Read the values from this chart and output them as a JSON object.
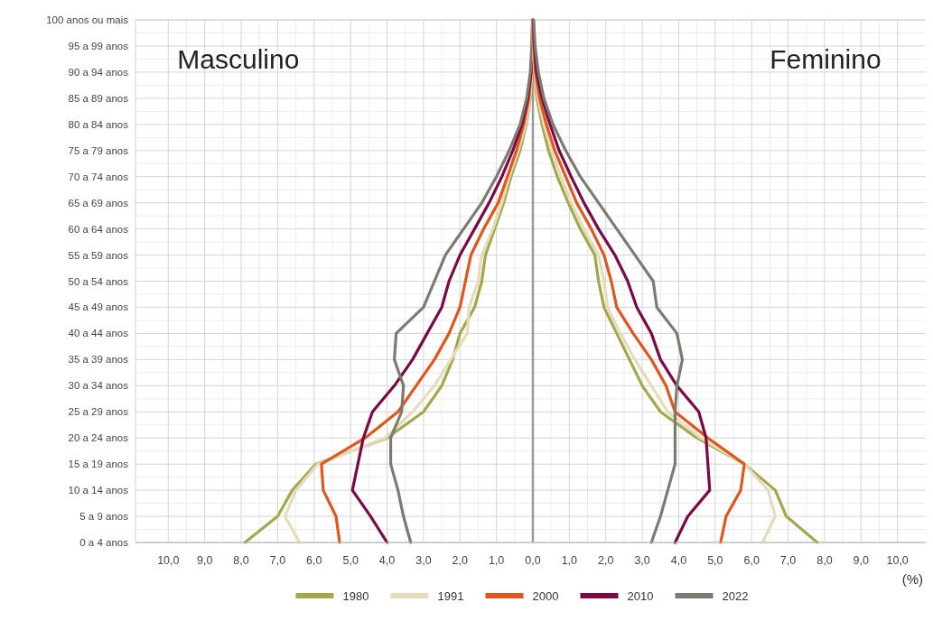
{
  "chart_data": {
    "type": "line",
    "orientation": "horizontal",
    "xlabel": "(%)",
    "annotations": [
      "Masculino",
      "Feminino"
    ],
    "categories": [
      "100 anos ou mais",
      "95 a 99 anos",
      "90 a 94 anos",
      "85 a 89 anos",
      "80 a 84 anos",
      "75 a 79 anos",
      "70 a 74 anos",
      "65 a 69 anos",
      "60 a 64 anos",
      "55 a 59 anos",
      "50 a 54 anos",
      "45 a 49 anos",
      "40 a 44 anos",
      "35 a 39 anos",
      "30 a 34 anos",
      "25 a 29 anos",
      "20 a 24 anos",
      "15 a 19 anos",
      "10 a 14 anos",
      "5 a 9 anos",
      "0 a 4 anos"
    ],
    "xlim": [
      -10.9,
      10.9
    ],
    "xticks": [
      {
        "value": -10,
        "label": "10,0"
      },
      {
        "value": -9,
        "label": "9,0"
      },
      {
        "value": -8,
        "label": "8,0"
      },
      {
        "value": -7,
        "label": "7,0"
      },
      {
        "value": -6,
        "label": "6,0"
      },
      {
        "value": -5,
        "label": "5,0"
      },
      {
        "value": -4,
        "label": "4,0"
      },
      {
        "value": -3,
        "label": "3,0"
      },
      {
        "value": -2,
        "label": "2,0"
      },
      {
        "value": -1,
        "label": "1,0"
      },
      {
        "value": 0,
        "label": "0,0"
      },
      {
        "value": 1,
        "label": "1,0"
      },
      {
        "value": 2,
        "label": "2,0"
      },
      {
        "value": 3,
        "label": "3,0"
      },
      {
        "value": 4,
        "label": "4,0"
      },
      {
        "value": 5,
        "label": "5,0"
      },
      {
        "value": 6,
        "label": "6,0"
      },
      {
        "value": 7,
        "label": "7,0"
      },
      {
        "value": 8,
        "label": "8,0"
      },
      {
        "value": 9,
        "label": "9,0"
      },
      {
        "value": 10,
        "label": "10,0"
      }
    ],
    "grid": true,
    "legend": "bottom",
    "marker": "none",
    "line_style": "solid",
    "ref_lines": [
      {
        "axis": "x",
        "value": 0,
        "color": "#9a9a9a"
      }
    ],
    "series": [
      {
        "name": "1980",
        "color": "#a3a84a",
        "values": [
          0,
          -0.01,
          -0.02,
          -0.07,
          -0.18,
          -0.35,
          -0.6,
          -0.8,
          -1.05,
          -1.3,
          -1.4,
          -1.6,
          -2.0,
          -2.2,
          -2.5,
          -3.0,
          -4.0,
          -5.95,
          -6.6,
          -7.0,
          -7.9
        ]
      },
      {
        "name": "1991",
        "color": "#e6dcbc",
        "values": [
          0,
          -0.01,
          -0.03,
          -0.08,
          -0.2,
          -0.4,
          -0.65,
          -0.85,
          -1.1,
          -1.4,
          -1.5,
          -1.75,
          -1.8,
          -2.25,
          -2.7,
          -3.3,
          -4.05,
          -5.9,
          -6.5,
          -6.8,
          -6.4
        ]
      },
      {
        "name": "2000",
        "color": "#e0561c",
        "values": [
          0,
          -0.01,
          -0.04,
          -0.11,
          -0.25,
          -0.45,
          -0.7,
          -0.95,
          -1.35,
          -1.7,
          -1.85,
          -2.0,
          -2.3,
          -2.7,
          -3.2,
          -3.7,
          -4.6,
          -5.8,
          -5.75,
          -5.4,
          -5.3
        ]
      },
      {
        "name": "2010",
        "color": "#7a0a45",
        "values": [
          -0.01,
          -0.02,
          -0.05,
          -0.14,
          -0.3,
          -0.55,
          -0.85,
          -1.2,
          -1.6,
          -2.0,
          -2.3,
          -2.5,
          -2.9,
          -3.3,
          -3.8,
          -4.4,
          -4.65,
          -4.8,
          -4.95,
          -4.45,
          -4.0
        ]
      },
      {
        "name": "2022",
        "color": "#7d7a72",
        "values": [
          -0.01,
          -0.03,
          -0.07,
          -0.17,
          -0.35,
          -0.65,
          -1.0,
          -1.4,
          -1.9,
          -2.4,
          -2.7,
          -3.0,
          -3.75,
          -3.8,
          -3.55,
          -3.6,
          -3.9,
          -3.9,
          -3.7,
          -3.55,
          -3.35
        ]
      },
      {
        "color": "#a3a84a",
        "values": [
          0,
          0.01,
          0.04,
          0.11,
          0.25,
          0.43,
          0.67,
          0.97,
          1.3,
          1.7,
          1.8,
          1.95,
          2.3,
          2.65,
          3.0,
          3.5,
          4.5,
          5.8,
          6.65,
          6.95,
          7.8
        ]
      },
      {
        "color": "#e6dcbc",
        "values": [
          0,
          0.01,
          0.05,
          0.14,
          0.3,
          0.52,
          0.77,
          1.05,
          1.4,
          1.8,
          1.95,
          2.05,
          2.4,
          2.8,
          3.25,
          3.7,
          4.6,
          5.8,
          6.45,
          6.65,
          6.3
        ]
      },
      {
        "color": "#e0561c",
        "values": [
          0,
          0.02,
          0.07,
          0.18,
          0.37,
          0.6,
          0.9,
          1.2,
          1.6,
          1.95,
          2.15,
          2.3,
          2.75,
          3.25,
          3.65,
          3.9,
          4.8,
          5.8,
          5.7,
          5.3,
          5.15
        ]
      },
      {
        "color": "#7a0a45",
        "values": [
          0.01,
          0.04,
          0.1,
          0.25,
          0.47,
          0.72,
          1.05,
          1.4,
          1.8,
          2.25,
          2.6,
          2.85,
          3.25,
          3.5,
          3.95,
          4.55,
          4.75,
          4.8,
          4.85,
          4.25,
          3.9
        ]
      },
      {
        "color": "#7d7a72",
        "values": [
          0.02,
          0.06,
          0.15,
          0.3,
          0.55,
          0.9,
          1.3,
          1.8,
          2.3,
          2.8,
          3.3,
          3.4,
          3.95,
          4.1,
          3.95,
          3.9,
          3.9,
          3.9,
          3.7,
          3.5,
          3.25
        ]
      }
    ]
  }
}
